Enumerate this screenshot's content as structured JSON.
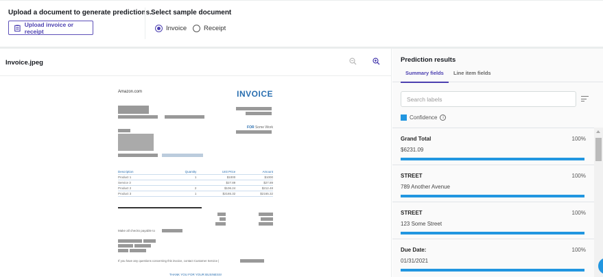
{
  "upload": {
    "title": "Upload a document to generate predictions.",
    "button": "Upload invoice or receipt",
    "icon": "clipboard-icon"
  },
  "sample": {
    "title": "Select sample document",
    "options": [
      {
        "label": "Invoice",
        "selected": true
      },
      {
        "label": "Receipt",
        "selected": false
      }
    ]
  },
  "viewer": {
    "filename": "Invoice.jpeg",
    "zoom_out_icon": "zoom-out-icon",
    "zoom_in_icon": "zoom-in-icon"
  },
  "document": {
    "company": "Amazon.com",
    "heading": "INVOICE",
    "for_label": "FOR",
    "for_value": "Some Work",
    "table": {
      "headers": [
        "Description",
        "Quantity",
        "Unit Price",
        "Amount"
      ],
      "rows": [
        [
          "Product 1",
          "1",
          "$1000",
          "$1000"
        ],
        [
          "Service 3",
          "",
          "$27.89",
          "$27.89"
        ],
        [
          "Product 2",
          "2",
          "$106.24",
          "$212.48"
        ],
        [
          "Product 3",
          "1",
          "$2165.32",
          "$2165.32"
        ]
      ]
    },
    "checks_text": "Make all checks payable to",
    "questions_text": "If you have any questions concerning this invoice, contact Customer Service |",
    "thanks": "THANK YOU FOR YOUR BUSINESS!"
  },
  "results": {
    "title": "Prediction results",
    "tabs": [
      {
        "label": "Summary fields",
        "active": true
      },
      {
        "label": "Line item fields",
        "active": false
      }
    ],
    "search_placeholder": "Search labels",
    "legend": "Confidence",
    "accent": "#2196e0",
    "fields": [
      {
        "label": "Grand Total",
        "value": "$6231.09",
        "confidence": "100%"
      },
      {
        "label": "STREET",
        "value": "789 Another Avenue",
        "confidence": "100%"
      },
      {
        "label": "STREET",
        "value": "123 Some Street",
        "confidence": "100%"
      },
      {
        "label": "Due Date:",
        "value": "01/31/2021",
        "confidence": "100%"
      }
    ]
  }
}
